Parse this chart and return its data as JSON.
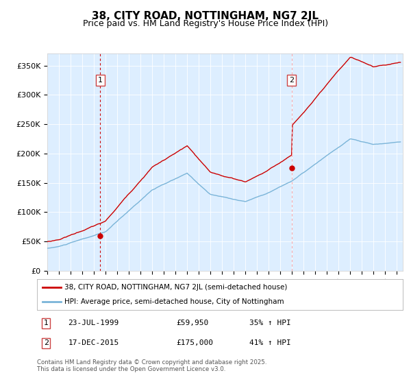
{
  "title": "38, CITY ROAD, NOTTINGHAM, NG7 2JL",
  "subtitle": "Price paid vs. HM Land Registry's House Price Index (HPI)",
  "legend_line1": "38, CITY ROAD, NOTTINGHAM, NG7 2JL (semi-detached house)",
  "legend_line2": "HPI: Average price, semi-detached house, City of Nottingham",
  "sale1_date": "23-JUL-1999",
  "sale1_price": "£59,950",
  "sale1_hpi": "35% ↑ HPI",
  "sale1_year": 1999.55,
  "sale1_value": 59950,
  "sale2_date": "17-DEC-2015",
  "sale2_price": "£175,000",
  "sale2_hpi": "41% ↑ HPI",
  "sale2_year": 2015.96,
  "sale2_value": 175000,
  "hpi_color": "#7ab4d8",
  "price_color": "#cc0000",
  "vline1_color": "#cc0000",
  "vline2_color": "#ffaaaa",
  "plot_bg": "#ddeeff",
  "ylim": [
    0,
    370000
  ],
  "xlim_start": 1995.0,
  "xlim_end": 2025.5,
  "footer": "Contains HM Land Registry data © Crown copyright and database right 2025.\nThis data is licensed under the Open Government Licence v3.0.",
  "ylabel_ticks": [
    0,
    50000,
    100000,
    150000,
    200000,
    250000,
    300000,
    350000
  ],
  "ylabel_labels": [
    "£0",
    "£50K",
    "£100K",
    "£150K",
    "£200K",
    "£250K",
    "£300K",
    "£350K"
  ]
}
